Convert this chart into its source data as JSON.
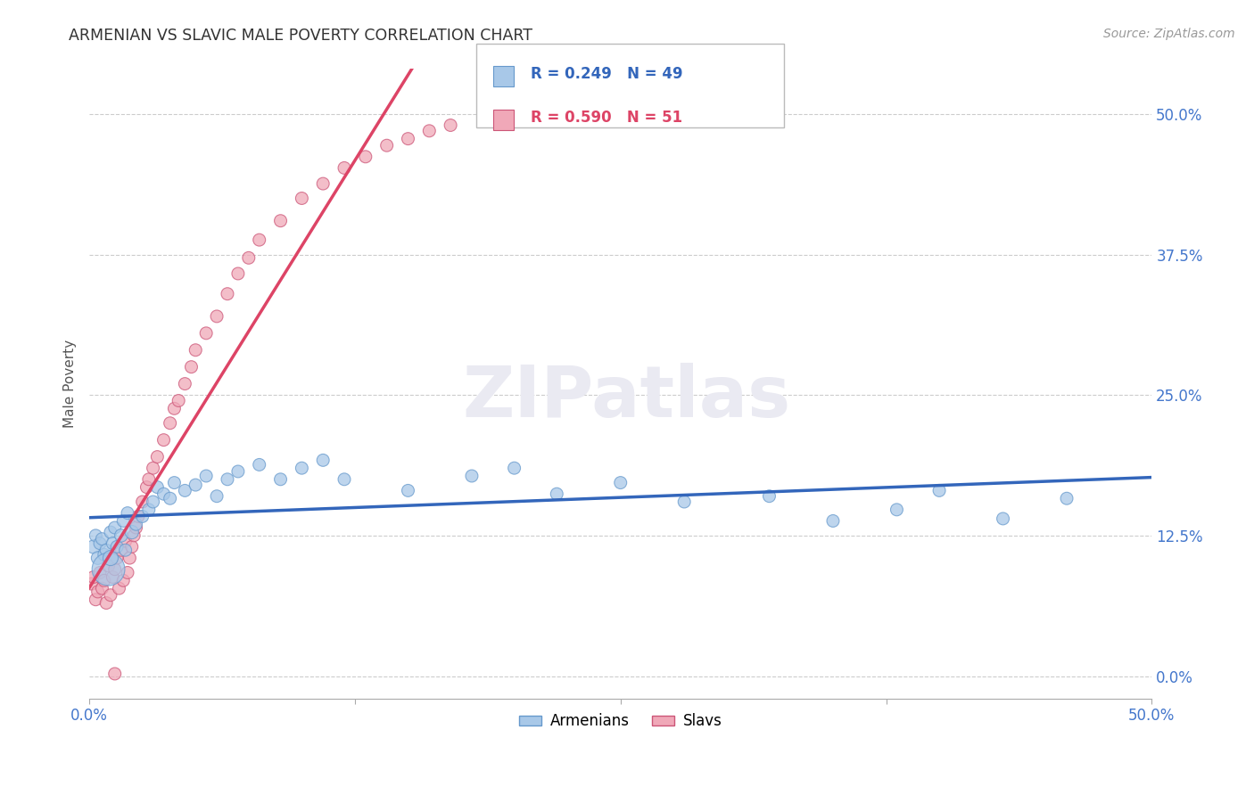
{
  "title": "ARMENIAN VS SLAVIC MALE POVERTY CORRELATION CHART",
  "source": "Source: ZipAtlas.com",
  "ylabel": "Male Poverty",
  "ytick_labels": [
    "0.0%",
    "12.5%",
    "25.0%",
    "37.5%",
    "50.0%"
  ],
  "ytick_values": [
    0.0,
    0.125,
    0.25,
    0.375,
    0.5
  ],
  "xtick_labels": [
    "0.0%",
    "",
    "",
    "",
    "50.0%"
  ],
  "xtick_values": [
    0.0,
    0.125,
    0.25,
    0.375,
    0.5
  ],
  "xlim": [
    0.0,
    0.5
  ],
  "ylim": [
    -0.02,
    0.54
  ],
  "legend_armenians": "Armenians",
  "legend_slavs": "Slavs",
  "R_armenians": "0.249",
  "N_armenians": "49",
  "R_slavs": "0.590",
  "N_slavs": "51",
  "color_armenians_fill": "#A8C8E8",
  "color_slavs_fill": "#F0A8B8",
  "color_armenians_edge": "#6699CC",
  "color_slavs_edge": "#CC5577",
  "color_armenians_line": "#3366BB",
  "color_slavs_line": "#DD4466",
  "background_color": "#FFFFFF",
  "grid_color": "#CCCCCC",
  "title_color": "#333333",
  "axis_tick_color": "#4477CC",
  "armenians_x": [
    0.002,
    0.003,
    0.004,
    0.005,
    0.006,
    0.007,
    0.008,
    0.009,
    0.01,
    0.01,
    0.011,
    0.012,
    0.013,
    0.015,
    0.016,
    0.017,
    0.018,
    0.02,
    0.022,
    0.025,
    0.028,
    0.03,
    0.032,
    0.035,
    0.038,
    0.04,
    0.045,
    0.05,
    0.055,
    0.06,
    0.065,
    0.07,
    0.08,
    0.09,
    0.1,
    0.11,
    0.12,
    0.15,
    0.18,
    0.2,
    0.22,
    0.25,
    0.28,
    0.32,
    0.35,
    0.38,
    0.4,
    0.43,
    0.46
  ],
  "armenians_y": [
    0.115,
    0.125,
    0.105,
    0.118,
    0.122,
    0.108,
    0.112,
    0.095,
    0.128,
    0.105,
    0.118,
    0.132,
    0.115,
    0.125,
    0.138,
    0.112,
    0.145,
    0.128,
    0.135,
    0.142,
    0.148,
    0.155,
    0.168,
    0.162,
    0.158,
    0.172,
    0.165,
    0.17,
    0.178,
    0.16,
    0.175,
    0.182,
    0.188,
    0.175,
    0.185,
    0.192,
    0.175,
    0.165,
    0.178,
    0.185,
    0.162,
    0.172,
    0.155,
    0.16,
    0.138,
    0.148,
    0.165,
    0.14,
    0.158
  ],
  "armenians_size": [
    120,
    100,
    110,
    100,
    100,
    100,
    100,
    700,
    100,
    150,
    100,
    100,
    100,
    110,
    100,
    100,
    100,
    120,
    100,
    100,
    100,
    100,
    100,
    100,
    100,
    100,
    100,
    100,
    100,
    100,
    100,
    100,
    100,
    100,
    100,
    100,
    100,
    100,
    100,
    100,
    100,
    100,
    100,
    100,
    100,
    100,
    100,
    100,
    100
  ],
  "slavs_x": [
    0.001,
    0.002,
    0.003,
    0.004,
    0.005,
    0.006,
    0.007,
    0.008,
    0.009,
    0.01,
    0.011,
    0.012,
    0.013,
    0.014,
    0.015,
    0.016,
    0.017,
    0.018,
    0.019,
    0.02,
    0.021,
    0.022,
    0.023,
    0.025,
    0.027,
    0.028,
    0.03,
    0.032,
    0.035,
    0.038,
    0.04,
    0.042,
    0.045,
    0.048,
    0.05,
    0.055,
    0.06,
    0.065,
    0.07,
    0.075,
    0.08,
    0.09,
    0.1,
    0.11,
    0.12,
    0.13,
    0.14,
    0.15,
    0.16,
    0.17,
    0.012
  ],
  "slavs_y": [
    0.082,
    0.088,
    0.068,
    0.075,
    0.092,
    0.078,
    0.085,
    0.065,
    0.098,
    0.072,
    0.088,
    0.095,
    0.105,
    0.078,
    0.112,
    0.085,
    0.12,
    0.092,
    0.105,
    0.115,
    0.125,
    0.132,
    0.142,
    0.155,
    0.168,
    0.175,
    0.185,
    0.195,
    0.21,
    0.225,
    0.238,
    0.245,
    0.26,
    0.275,
    0.29,
    0.305,
    0.32,
    0.34,
    0.358,
    0.372,
    0.388,
    0.405,
    0.425,
    0.438,
    0.452,
    0.462,
    0.472,
    0.478,
    0.485,
    0.49,
    0.002
  ],
  "slavs_size": [
    100,
    100,
    100,
    100,
    100,
    100,
    100,
    100,
    100,
    100,
    100,
    100,
    100,
    100,
    100,
    100,
    100,
    100,
    100,
    100,
    100,
    100,
    100,
    100,
    100,
    100,
    100,
    100,
    100,
    100,
    100,
    100,
    100,
    100,
    100,
    100,
    100,
    100,
    100,
    100,
    100,
    100,
    100,
    100,
    100,
    100,
    100,
    100,
    100,
    100,
    100
  ]
}
